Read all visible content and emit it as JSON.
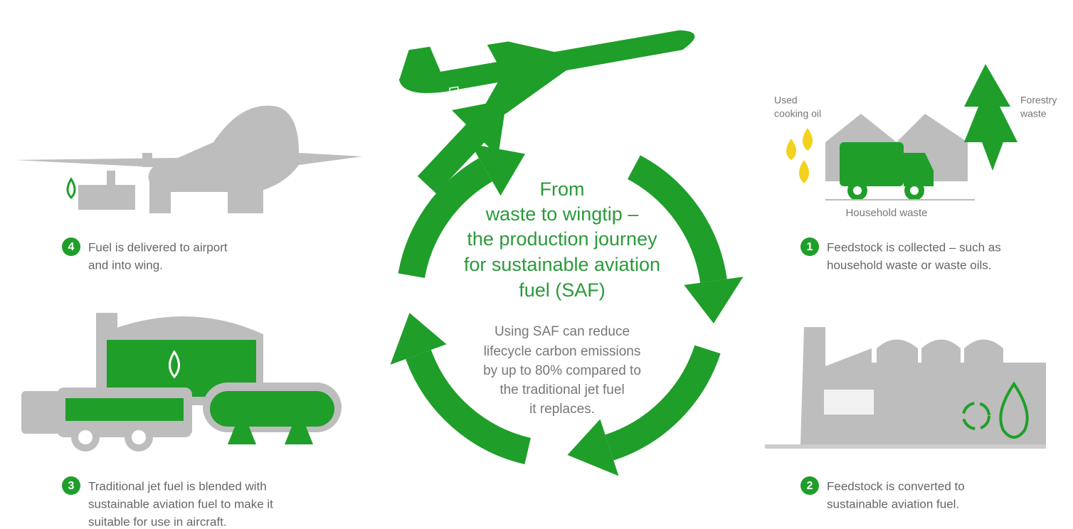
{
  "center": {
    "title": [
      "From",
      "waste to wingtip –",
      "the production journey",
      "for sustainable aviation",
      "fuel (SAF)"
    ],
    "description": [
      "Using SAF can reduce",
      "lifecycle carbon emissions",
      "by up to 80% compared to",
      "the traditional jet fuel",
      "it replaces."
    ]
  },
  "steps": [
    {
      "number": 1,
      "text": [
        "Feedstock is collected – such as",
        "household waste or waste oils."
      ]
    },
    {
      "number": 2,
      "text": [
        "Feedstock is converted to",
        "sustainable aviation fuel."
      ]
    },
    {
      "number": 3,
      "text": [
        "Traditional jet fuel is blended with",
        "sustainable aviation fuel to make it",
        "suitable for use in aircraft."
      ]
    },
    {
      "number": 4,
      "text": [
        "Fuel is delivered to airport",
        "and into wing."
      ]
    }
  ],
  "labels": {
    "used_cooking_oil": [
      "Used",
      "cooking oil"
    ],
    "forestry_waste": [
      "Forestry",
      "waste"
    ],
    "household_waste": "Household waste"
  }
}
